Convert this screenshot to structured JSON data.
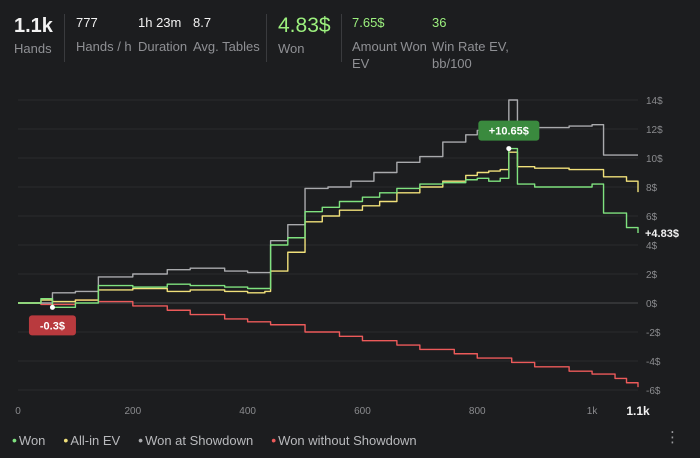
{
  "stats": {
    "hands": {
      "value": "1.1k",
      "label": "Hands"
    },
    "hands_per_hour": {
      "value": "777",
      "label": "Hands / h"
    },
    "duration": {
      "value": "1h 23m",
      "label": "Duration"
    },
    "avg_tables": {
      "value": "8.7",
      "label": "Avg. Tables"
    },
    "won": {
      "value": "4.83$",
      "label": "Won"
    },
    "amount_won_ev": {
      "value": "7.65$",
      "label_line1": "Amount Won",
      "label_line2": "EV"
    },
    "win_rate_ev": {
      "value": "36",
      "label_line1": "Win Rate EV,",
      "label_line2": "bb/100"
    }
  },
  "colors": {
    "won": "#7fe27f",
    "allin_ev": "#f0e07a",
    "showdown": "#a9aaad",
    "no_showdown": "#ec5a5a",
    "badge_green": "#3a8a3e",
    "badge_red": "#b93a3e"
  },
  "chart_data": {
    "type": "line",
    "x_ticks": [
      "0",
      "200",
      "400",
      "600",
      "800",
      "1k"
    ],
    "x_end_label": "1.1k",
    "y_ticks": [
      "14$",
      "12$",
      "10$",
      "8$",
      "6$",
      "4$",
      "2$",
      "0$",
      "-2$",
      "-4$",
      "-6$"
    ],
    "xlim": [
      0,
      1080
    ],
    "ylim": [
      -6,
      14
    ],
    "grid": true,
    "legend_position": "bottom-left",
    "series": [
      {
        "name": "Won",
        "key": "won",
        "points": [
          [
            0,
            0
          ],
          [
            40,
            0.3
          ],
          [
            60,
            -0.3
          ],
          [
            100,
            0
          ],
          [
            140,
            1.2
          ],
          [
            200,
            1.1
          ],
          [
            260,
            1.3
          ],
          [
            300,
            1.2
          ],
          [
            360,
            1.1
          ],
          [
            400,
            1.0
          ],
          [
            430,
            1.0
          ],
          [
            440,
            4.0
          ],
          [
            470,
            4.5
          ],
          [
            500,
            6.3
          ],
          [
            530,
            6.6
          ],
          [
            560,
            7.0
          ],
          [
            600,
            7.3
          ],
          [
            630,
            7.6
          ],
          [
            660,
            7.9
          ],
          [
            700,
            8.2
          ],
          [
            740,
            8.3
          ],
          [
            780,
            8.5
          ],
          [
            800,
            8.6
          ],
          [
            820,
            8.4
          ],
          [
            840,
            8.6
          ],
          [
            855,
            10.65
          ],
          [
            870,
            8.2
          ],
          [
            900,
            8.0
          ],
          [
            960,
            8.0
          ],
          [
            1000,
            8.2
          ],
          [
            1020,
            6.2
          ],
          [
            1060,
            5.2
          ],
          [
            1080,
            4.83
          ]
        ]
      },
      {
        "name": "All-in EV",
        "key": "allin_ev",
        "points": [
          [
            0,
            0
          ],
          [
            40,
            0.2
          ],
          [
            60,
            0.1
          ],
          [
            100,
            0.2
          ],
          [
            140,
            0.9
          ],
          [
            200,
            1.0
          ],
          [
            260,
            0.8
          ],
          [
            300,
            0.9
          ],
          [
            360,
            0.8
          ],
          [
            400,
            0.7
          ],
          [
            430,
            0.8
          ],
          [
            440,
            2.2
          ],
          [
            470,
            3.5
          ],
          [
            500,
            5.6
          ],
          [
            530,
            6.0
          ],
          [
            560,
            6.4
          ],
          [
            600,
            6.7
          ],
          [
            630,
            7.0
          ],
          [
            660,
            7.6
          ],
          [
            700,
            8.0
          ],
          [
            740,
            8.4
          ],
          [
            780,
            8.8
          ],
          [
            800,
            9.0
          ],
          [
            820,
            9.1
          ],
          [
            840,
            9.2
          ],
          [
            855,
            10.4
          ],
          [
            870,
            9.4
          ],
          [
            900,
            9.3
          ],
          [
            960,
            9.2
          ],
          [
            1000,
            9.2
          ],
          [
            1020,
            8.7
          ],
          [
            1060,
            8.4
          ],
          [
            1080,
            7.65
          ]
        ]
      },
      {
        "name": "Won at Showdown",
        "key": "showdown",
        "points": [
          [
            0,
            0
          ],
          [
            60,
            0.7
          ],
          [
            100,
            0.8
          ],
          [
            140,
            1.8
          ],
          [
            200,
            2.0
          ],
          [
            260,
            2.3
          ],
          [
            300,
            2.4
          ],
          [
            360,
            2.2
          ],
          [
            400,
            2.1
          ],
          [
            430,
            2.1
          ],
          [
            440,
            4.3
          ],
          [
            470,
            5.4
          ],
          [
            500,
            7.9
          ],
          [
            540,
            8.0
          ],
          [
            580,
            8.4
          ],
          [
            620,
            9.0
          ],
          [
            660,
            9.7
          ],
          [
            700,
            10.1
          ],
          [
            740,
            11.1
          ],
          [
            780,
            11.6
          ],
          [
            800,
            11.9
          ],
          [
            820,
            12.1
          ],
          [
            840,
            12.3
          ],
          [
            855,
            14.0
          ],
          [
            870,
            11.8
          ],
          [
            900,
            12.1
          ],
          [
            960,
            12.2
          ],
          [
            1000,
            12.3
          ],
          [
            1020,
            10.2
          ],
          [
            1060,
            10.2
          ],
          [
            1080,
            10.2
          ]
        ]
      },
      {
        "name": "Won without Showdown",
        "key": "no_showdown",
        "points": [
          [
            0,
            0
          ],
          [
            40,
            -0.1
          ],
          [
            60,
            -0.1
          ],
          [
            100,
            0.2
          ],
          [
            140,
            0.1
          ],
          [
            200,
            -0.2
          ],
          [
            260,
            -0.5
          ],
          [
            300,
            -0.8
          ],
          [
            360,
            -1.1
          ],
          [
            400,
            -1.3
          ],
          [
            440,
            -1.5
          ],
          [
            500,
            -2.0
          ],
          [
            560,
            -2.3
          ],
          [
            600,
            -2.6
          ],
          [
            660,
            -2.9
          ],
          [
            700,
            -3.2
          ],
          [
            760,
            -3.5
          ],
          [
            800,
            -3.8
          ],
          [
            860,
            -4.1
          ],
          [
            900,
            -4.4
          ],
          [
            960,
            -4.7
          ],
          [
            1000,
            -4.9
          ],
          [
            1040,
            -5.2
          ],
          [
            1060,
            -5.5
          ],
          [
            1080,
            -5.8
          ]
        ]
      }
    ],
    "annotations": [
      {
        "text": "+10.65$",
        "x": 855,
        "y": 10.65,
        "style": "green"
      },
      {
        "text": "-0.3$",
        "x": 60,
        "y": -0.3,
        "style": "red"
      }
    ],
    "end_label": "+4.83$"
  }
}
